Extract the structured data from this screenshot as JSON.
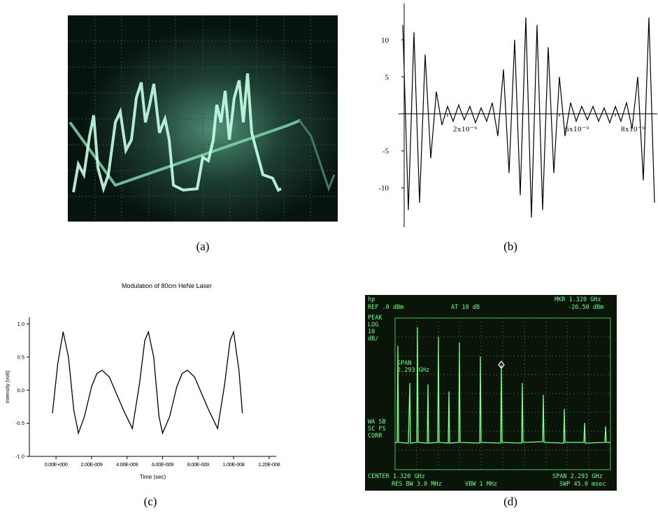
{
  "figure": {
    "captions": [
      "(a)",
      "(b)",
      "(c)",
      "(d)"
    ]
  },
  "chart_data": [
    {
      "type": "line",
      "x": [
        4e-10,
        6e-10,
        8e-10,
        1e-09,
        1.2e-09,
        1.4e-09,
        1.6e-09,
        1.8e-09,
        2e-09,
        2.2e-09,
        2.4e-09,
        2.6e-09,
        2.8e-09,
        3e-09,
        3.2e-09,
        3.4e-09,
        3.6e-09,
        3.8e-09,
        4e-09,
        4.2e-09,
        4.4e-09,
        4.6e-09,
        4.8e-09,
        5e-09,
        5.2e-09,
        5.4e-09,
        5.6e-09,
        5.8e-09,
        6e-09,
        6.2e-09,
        6.4e-09,
        6.6e-09,
        6.8e-09,
        7e-09,
        7.2e-09,
        7.4e-09,
        7.6e-09,
        7.8e-09,
        8e-09,
        8.2e-09,
        8.4e-09,
        8.6e-09,
        8.8e-09,
        9e-09,
        9.2e-09,
        9.4e-09
      ],
      "series": [
        {
          "color": "#000000",
          "values": [
            12,
            -13,
            11,
            -12,
            8,
            -6,
            3,
            -1.5,
            1,
            -1,
            1.2,
            -0.8,
            1,
            -1.2,
            0.8,
            -1,
            1.5,
            -3,
            6,
            -8,
            10,
            -11,
            13,
            -14,
            12,
            -13,
            9,
            -8,
            5,
            -3,
            1.5,
            -1,
            1,
            -0.8,
            1,
            -1,
            0.8,
            -1.2,
            1,
            -1,
            1.5,
            -2,
            5,
            -9,
            13,
            -12
          ]
        }
      ],
      "xlim": [
        2.5e-10,
        9.5e-09
      ],
      "ylim": [
        -15.3,
        14.9
      ],
      "xticks": [
        {
          "value": 2e-09,
          "label": "2x10⁻⁹"
        },
        {
          "value": 6e-09,
          "label": "6x10⁻⁹"
        },
        {
          "value": 8e-09,
          "label": "8x10⁻⁹"
        }
      ],
      "yticks": [
        -10,
        -5,
        5,
        10
      ]
    },
    {
      "type": "line",
      "title": "Modulation of 80cm  HeNe Laser",
      "xlabel": "Time (sec)",
      "ylabel": "Intensity (volt)",
      "x": [
        -2e-10,
        1e-10,
        4e-10,
        7e-10,
        1e-09,
        1.26e-09,
        1.6e-09,
        2e-09,
        2.3e-09,
        2.6e-09,
        3e-09,
        3.4e-09,
        3.8e-09,
        4.3e-09,
        4.7e-09,
        5e-09,
        5.2e-09,
        5.5e-09,
        5.8e-09,
        6e-09,
        6.4e-09,
        6.8e-09,
        7.1e-09,
        7.4e-09,
        7.8e-09,
        8.2e-09,
        8.6e-09,
        9.1e-09,
        9.5e-09,
        9.8e-09,
        1e-08,
        1.03e-08,
        1.05e-08
      ],
      "series": [
        {
          "color": "#000000",
          "values": [
            -0.35,
            0.4,
            0.88,
            0.5,
            -0.3,
            -0.65,
            -0.4,
            0.05,
            0.25,
            0.3,
            0.2,
            -0.05,
            -0.3,
            -0.58,
            0.1,
            0.75,
            0.88,
            0.5,
            -0.4,
            -0.65,
            -0.4,
            0.05,
            0.25,
            0.3,
            0.2,
            -0.05,
            -0.3,
            -0.58,
            0.1,
            0.75,
            0.88,
            0.3,
            -0.35
          ]
        }
      ],
      "xlim": [
        -1.5e-09,
        1.24e-08
      ],
      "ylim": [
        -1.0,
        1.1
      ],
      "xticks": [
        {
          "value": 0,
          "label": "0.00E+000"
        },
        {
          "value": 2e-09,
          "label": "2.00E-009"
        },
        {
          "value": 4e-09,
          "label": "4.00E-009"
        },
        {
          "value": 6e-09,
          "label": "6.00E-009"
        },
        {
          "value": 8e-09,
          "label": "8.00E-009"
        },
        {
          "value": 1e-08,
          "label": "1.00E-008"
        },
        {
          "value": 1.2e-08,
          "label": "1.20E-008"
        }
      ],
      "yticks": [
        {
          "value": 1.0,
          "label": "1.0"
        },
        0.5,
        {
          "value": 0,
          "label": "0.0"
        },
        -0.5,
        {
          "value": -1.0,
          "label": "-1.0"
        }
      ]
    }
  ],
  "panel_d": {
    "texts": [
      "hp",
      "REF .0 dBm",
      "AT 10 dB",
      "MKR 1.320 GHz",
      "-26.50 dBm",
      "PEAK",
      "LOG",
      "10",
      "dB/",
      "SPAN",
      "2.293 GHz",
      "WA SB",
      "SC FS",
      "CORR",
      "CENTER 1.320 GHz",
      "RES BW 3.0 MHz",
      "VBW 1 MHz",
      "SPAN 2.293 GHz",
      "SWP 45.0 msec"
    ]
  }
}
